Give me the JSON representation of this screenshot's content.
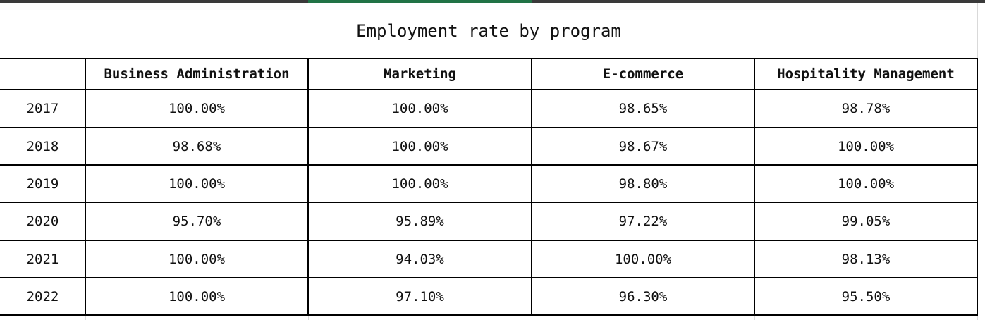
{
  "title": "Employment rate by program",
  "table": {
    "header": [
      "Business Administration",
      "Marketing",
      "E-commerce",
      "Hospitality Management"
    ],
    "rows": [
      [
        "2017",
        "100.00%",
        "100.00%",
        "98.65%",
        "98.78%"
      ],
      [
        "2018",
        "98.68%",
        "100.00%",
        "98.67%",
        "100.00%"
      ],
      [
        "2019",
        "100.00%",
        "100.00%",
        "98.80%",
        "100.00%"
      ],
      [
        "2020",
        "95.70%",
        "95.89%",
        "97.22%",
        "99.05%"
      ],
      [
        "2021",
        "100.00%",
        "94.03%",
        "100.00%",
        "98.13%"
      ],
      [
        "2022",
        "100.00%",
        "97.10%",
        "96.30%",
        "95.50%"
      ]
    ]
  }
}
